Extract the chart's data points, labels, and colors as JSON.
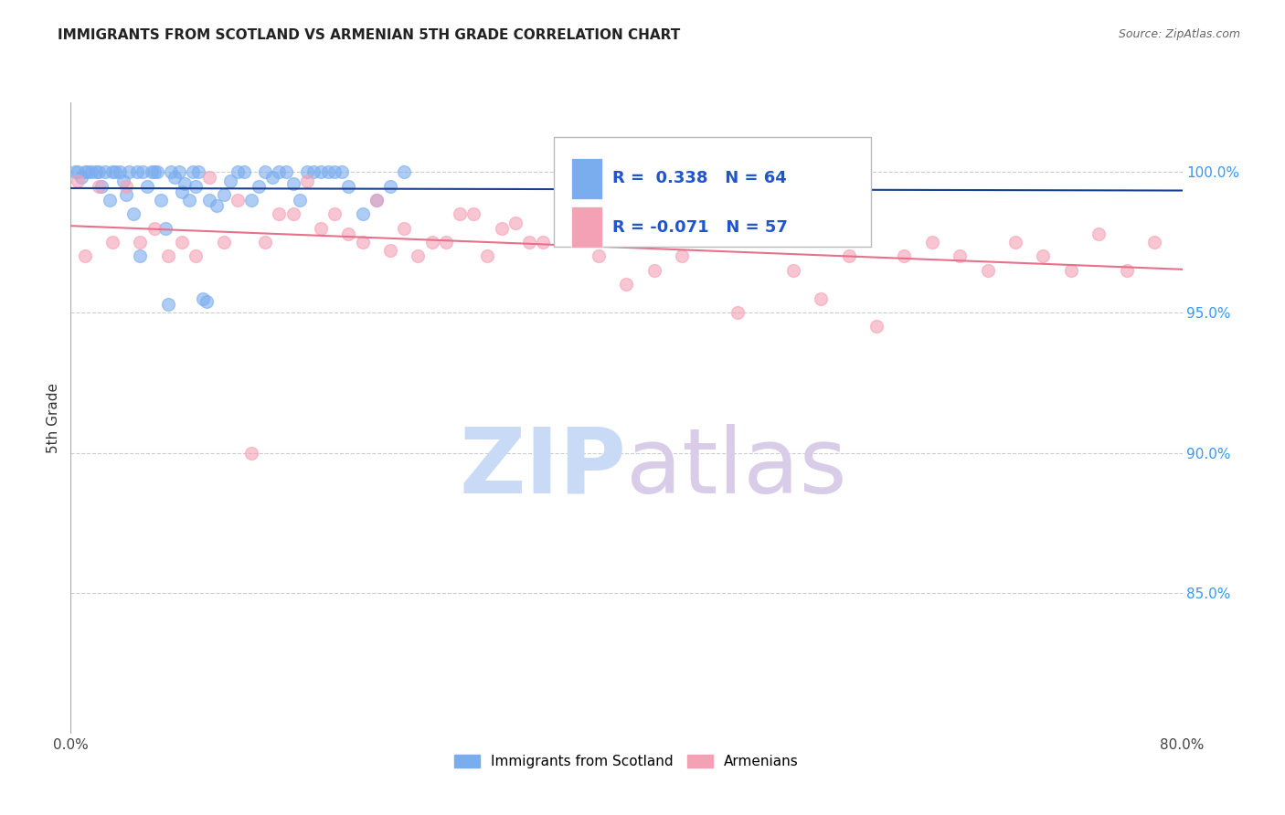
{
  "title": "IMMIGRANTS FROM SCOTLAND VS ARMENIAN 5TH GRADE CORRELATION CHART",
  "source_text": "Source: ZipAtlas.com",
  "ylabel": "5th Grade",
  "xlim": [
    0.0,
    80.0
  ],
  "ylim": [
    80.0,
    102.5
  ],
  "yticks": [
    85.0,
    90.0,
    95.0,
    100.0
  ],
  "ytick_labels": [
    "85.0%",
    "90.0%",
    "95.0%",
    "100.0%"
  ],
  "xticks": [
    0.0,
    10.0,
    20.0,
    30.0,
    40.0,
    50.0,
    60.0,
    70.0,
    80.0
  ],
  "xtick_labels": [
    "0.0%",
    "",
    "",
    "",
    "",
    "",
    "",
    "",
    "80.0%"
  ],
  "scotland_R": 0.338,
  "scotland_N": 64,
  "armenian_R": -0.071,
  "armenian_N": 57,
  "scotland_color": "#7aadee",
  "armenian_color": "#f4a0b5",
  "scotland_line_color": "#1a3f8f",
  "armenian_line_color": "#e8708a",
  "watermark_zip_color": "#c8daf5",
  "watermark_atlas_color": "#d8cce8",
  "scotland_x": [
    0.3,
    0.5,
    0.8,
    1.0,
    1.2,
    1.5,
    1.8,
    2.0,
    2.2,
    2.5,
    2.8,
    3.0,
    3.2,
    3.5,
    3.8,
    4.0,
    4.2,
    4.5,
    4.8,
    5.0,
    5.2,
    5.5,
    5.8,
    6.0,
    6.2,
    6.5,
    6.8,
    7.0,
    7.2,
    7.5,
    7.8,
    8.0,
    8.2,
    8.5,
    8.8,
    9.0,
    9.2,
    9.5,
    9.8,
    10.0,
    10.5,
    11.0,
    11.5,
    12.0,
    12.5,
    13.0,
    13.5,
    14.0,
    14.5,
    15.0,
    15.5,
    16.0,
    16.5,
    17.0,
    17.5,
    18.0,
    18.5,
    19.0,
    19.5,
    20.0,
    21.0,
    22.0,
    23.0,
    24.0
  ],
  "scotland_y": [
    100.0,
    100.0,
    99.8,
    100.0,
    100.0,
    100.0,
    100.0,
    100.0,
    99.5,
    100.0,
    99.0,
    100.0,
    100.0,
    100.0,
    99.7,
    99.2,
    100.0,
    98.5,
    100.0,
    97.0,
    100.0,
    99.5,
    100.0,
    100.0,
    100.0,
    99.0,
    98.0,
    95.3,
    100.0,
    99.8,
    100.0,
    99.3,
    99.6,
    99.0,
    100.0,
    99.5,
    100.0,
    95.5,
    95.4,
    99.0,
    98.8,
    99.2,
    99.7,
    100.0,
    100.0,
    99.0,
    99.5,
    100.0,
    99.8,
    100.0,
    100.0,
    99.6,
    99.0,
    100.0,
    100.0,
    100.0,
    100.0,
    100.0,
    100.0,
    99.5,
    98.5,
    99.0,
    99.5,
    100.0
  ],
  "armenian_x": [
    0.5,
    2.0,
    4.0,
    6.0,
    8.0,
    10.0,
    12.0,
    14.0,
    16.0,
    18.0,
    20.0,
    22.0,
    24.0,
    26.0,
    28.0,
    30.0,
    32.0,
    34.0,
    36.0,
    38.0,
    40.0,
    42.0,
    44.0,
    46.0,
    48.0,
    50.0,
    52.0,
    54.0,
    56.0,
    58.0,
    60.0,
    62.0,
    64.0,
    66.0,
    68.0,
    70.0,
    72.0,
    74.0,
    76.0,
    78.0,
    1.0,
    3.0,
    5.0,
    7.0,
    9.0,
    11.0,
    13.0,
    15.0,
    17.0,
    19.0,
    21.0,
    23.0,
    25.0,
    27.0,
    29.0,
    31.0,
    33.0
  ],
  "armenian_y": [
    99.7,
    99.5,
    99.5,
    98.0,
    97.5,
    99.8,
    99.0,
    97.5,
    98.5,
    98.0,
    97.8,
    99.0,
    98.0,
    97.5,
    98.5,
    97.0,
    98.2,
    97.5,
    98.8,
    97.0,
    96.0,
    96.5,
    97.0,
    98.5,
    95.0,
    98.0,
    96.5,
    95.5,
    97.0,
    94.5,
    97.0,
    97.5,
    97.0,
    96.5,
    97.5,
    97.0,
    96.5,
    97.8,
    96.5,
    97.5,
    97.0,
    97.5,
    97.5,
    97.0,
    97.0,
    97.5,
    90.0,
    98.5,
    99.7,
    98.5,
    97.5,
    97.2,
    97.0,
    97.5,
    98.5,
    98.0,
    97.5
  ]
}
